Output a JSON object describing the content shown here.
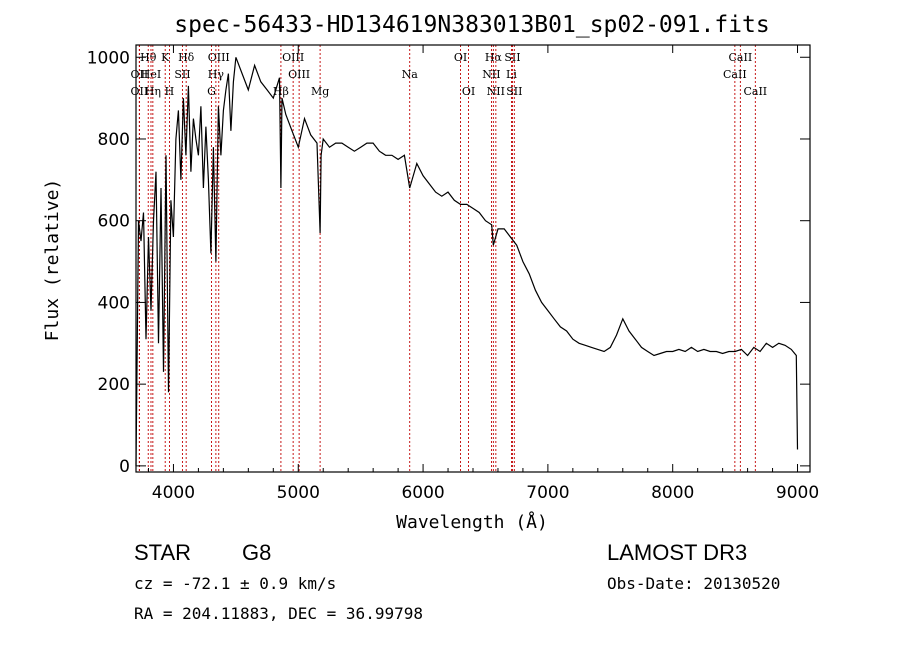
{
  "chart_data": {
    "type": "line",
    "title": "spec-56433-HD134619N383013B01_sp02-091.fits",
    "xlabel": "Wavelength (Å)",
    "ylabel": "Flux (relative)",
    "xlim": [
      3700,
      9100
    ],
    "ylim": [
      -15,
      1030
    ],
    "x_ticks": [
      4000,
      5000,
      6000,
      7000,
      8000,
      9000
    ],
    "y_ticks": [
      0,
      200,
      400,
      600,
      800,
      1000
    ],
    "series": [
      {
        "name": "flux",
        "x": [
          3700,
          3720,
          3740,
          3760,
          3780,
          3800,
          3820,
          3840,
          3860,
          3880,
          3900,
          3920,
          3940,
          3960,
          3980,
          4000,
          4020,
          4040,
          4060,
          4080,
          4100,
          4120,
          4140,
          4160,
          4180,
          4200,
          4220,
          4240,
          4260,
          4280,
          4300,
          4320,
          4340,
          4360,
          4380,
          4400,
          4420,
          4440,
          4460,
          4480,
          4500,
          4550,
          4600,
          4650,
          4700,
          4750,
          4800,
          4850,
          4861,
          4870,
          4900,
          4950,
          5000,
          5050,
          5100,
          5150,
          5175,
          5183,
          5200,
          5250,
          5300,
          5350,
          5400,
          5450,
          5500,
          5550,
          5600,
          5650,
          5700,
          5750,
          5800,
          5850,
          5893,
          5950,
          6000,
          6050,
          6100,
          6150,
          6200,
          6250,
          6300,
          6350,
          6400,
          6450,
          6500,
          6550,
          6563,
          6600,
          6650,
          6700,
          6750,
          6800,
          6850,
          6900,
          6950,
          7000,
          7050,
          7100,
          7150,
          7200,
          7250,
          7300,
          7350,
          7400,
          7450,
          7500,
          7550,
          7600,
          7650,
          7700,
          7750,
          7800,
          7850,
          7900,
          7950,
          8000,
          8050,
          8100,
          8150,
          8200,
          8250,
          8300,
          8350,
          8400,
          8450,
          8500,
          8550,
          8600,
          8650,
          8700,
          8750,
          8800,
          8850,
          8900,
          8950,
          8990,
          9000
        ],
        "y": [
          0,
          600,
          550,
          620,
          310,
          560,
          380,
          600,
          720,
          300,
          680,
          230,
          760,
          180,
          650,
          560,
          800,
          870,
          700,
          900,
          760,
          930,
          720,
          850,
          800,
          760,
          880,
          680,
          830,
          700,
          520,
          780,
          500,
          880,
          760,
          870,
          920,
          960,
          820,
          940,
          1000,
          960,
          920,
          980,
          940,
          920,
          900,
          950,
          680,
          900,
          860,
          820,
          780,
          850,
          810,
          790,
          570,
          760,
          800,
          780,
          790,
          790,
          780,
          770,
          780,
          790,
          790,
          770,
          760,
          760,
          750,
          760,
          680,
          740,
          710,
          690,
          670,
          660,
          670,
          650,
          640,
          640,
          630,
          620,
          600,
          590,
          540,
          580,
          580,
          560,
          540,
          500,
          470,
          430,
          400,
          380,
          360,
          340,
          330,
          310,
          300,
          295,
          290,
          285,
          280,
          290,
          320,
          360,
          330,
          310,
          290,
          280,
          270,
          275,
          280,
          280,
          285,
          280,
          290,
          280,
          285,
          280,
          280,
          275,
          280,
          280,
          285,
          270,
          290,
          280,
          300,
          290,
          300,
          295,
          285,
          270,
          40
        ],
        "style": "solid black"
      }
    ],
    "line_markers": [
      {
        "label": "OII",
        "x": 3727,
        "row": 2
      },
      {
        "label": "OII",
        "x": 3727,
        "row": 3
      },
      {
        "label": "Hθ",
        "x": 3798,
        "row": 1
      },
      {
        "label": "HeI",
        "x": 3820,
        "row": 2
      },
      {
        "label": "Hη",
        "x": 3835,
        "row": 3
      },
      {
        "label": "K",
        "x": 3934,
        "row": 1
      },
      {
        "label": "H",
        "x": 3968,
        "row": 3
      },
      {
        "label": "SII",
        "x": 4072,
        "row": 2
      },
      {
        "label": "Hδ",
        "x": 4102,
        "row": 1
      },
      {
        "label": "OIII",
        "x": 4363,
        "row": 1
      },
      {
        "label": "Hγ",
        "x": 4340,
        "row": 2
      },
      {
        "label": "G",
        "x": 4305,
        "row": 3
      },
      {
        "label": "Hβ",
        "x": 4861,
        "row": 3
      },
      {
        "label": "OIII",
        "x": 4959,
        "row": 1
      },
      {
        "label": "OIII",
        "x": 5007,
        "row": 2
      },
      {
        "label": "Mg",
        "x": 5175,
        "row": 3
      },
      {
        "label": "Na",
        "x": 5893,
        "row": 2
      },
      {
        "label": "OI",
        "x": 6300,
        "row": 1
      },
      {
        "label": "OI",
        "x": 6364,
        "row": 3
      },
      {
        "label": "Hα",
        "x": 6563,
        "row": 1
      },
      {
        "label": "NII",
        "x": 6548,
        "row": 2
      },
      {
        "label": "NII",
        "x": 6583,
        "row": 3
      },
      {
        "label": "SII",
        "x": 6716,
        "row": 1
      },
      {
        "label": "Li",
        "x": 6708,
        "row": 2
      },
      {
        "label": "SII",
        "x": 6731,
        "row": 3
      },
      {
        "label": "CaII",
        "x": 8542,
        "row": 1
      },
      {
        "label": "CaII",
        "x": 8498,
        "row": 2
      },
      {
        "label": "CaII",
        "x": 8662,
        "row": 3
      }
    ]
  },
  "info": {
    "object_class": "STAR",
    "subclass": "G8",
    "survey": "LAMOST DR3",
    "redshift": "cz = -72.1 ± 0.9 km/s",
    "obs_date": "Obs-Date: 20130520",
    "coords": "RA = 204.11883, DEC =  36.99798"
  }
}
